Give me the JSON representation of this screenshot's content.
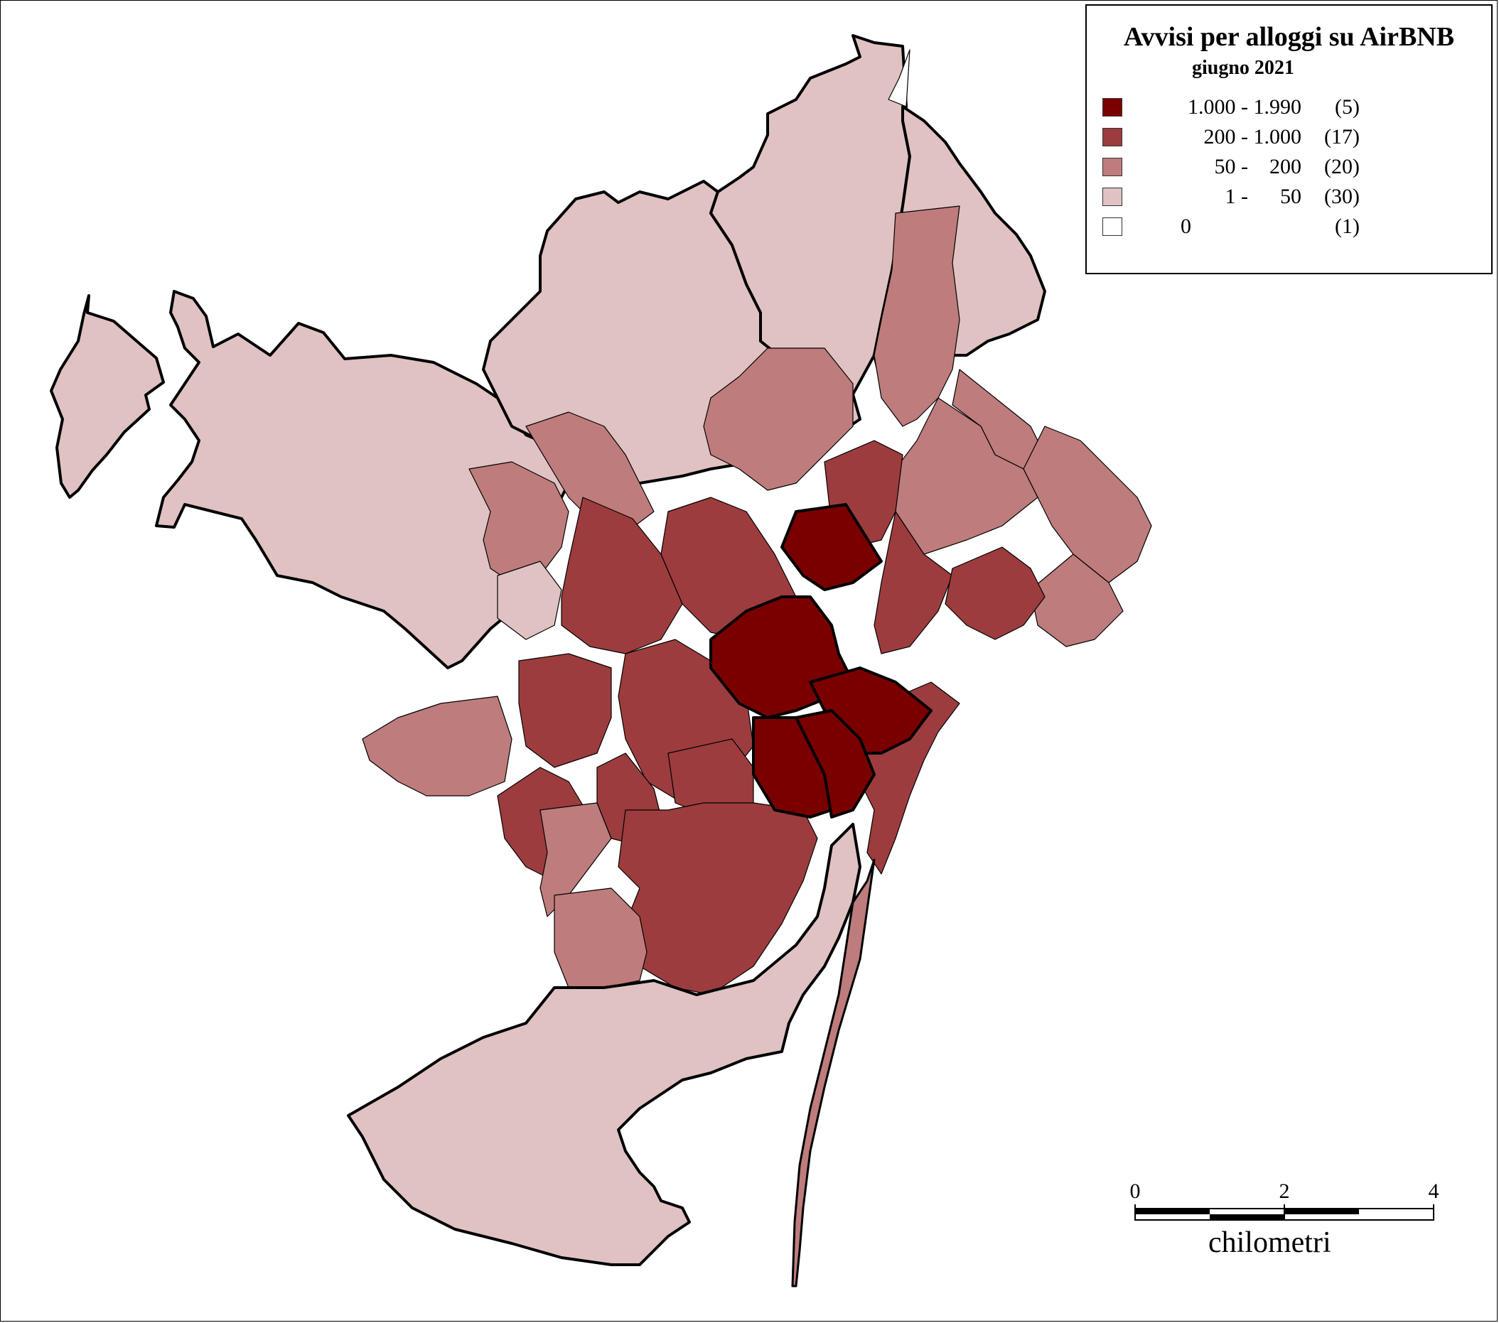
{
  "legend": {
    "title": "Avvisi per alloggi su AirBNB",
    "subtitle": "giugno 2021",
    "classes": [
      {
        "range": "1.000 - 1.990",
        "count": "(5)",
        "color": "#7a0000"
      },
      {
        "range": "200 - 1.000",
        "count": "(17)",
        "color": "#9c3c3e"
      },
      {
        "range": "50 -    200",
        "count": "(20)",
        "color": "#be7c7c"
      },
      {
        "range": "1 -      50",
        "count": "(30)",
        "color": "#e0c2c3"
      },
      {
        "range": "0",
        "count": "(1)",
        "color": "#ffffff"
      }
    ]
  },
  "scale": {
    "ticks": [
      "0",
      "2",
      "4"
    ],
    "unit": "chilometri"
  }
}
